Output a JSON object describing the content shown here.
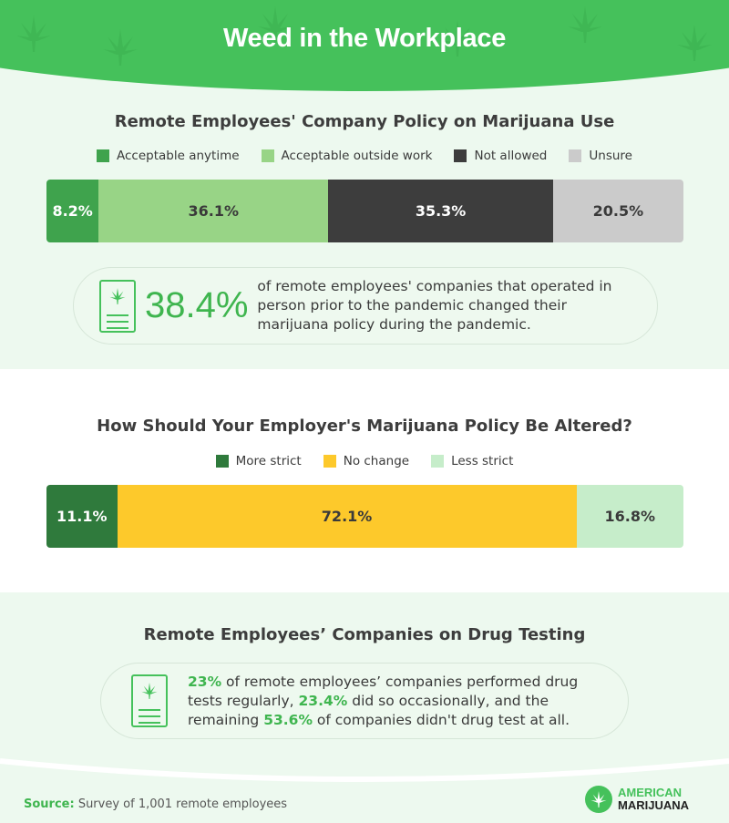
{
  "title": "Weed in the Workplace",
  "chart_data": [
    {
      "type": "bar",
      "orientation": "horizontal-stacked",
      "title": "Remote Employees' Company Policy on Marijuana Use",
      "series": [
        {
          "name": "Acceptable anytime",
          "value": 8.2,
          "label": "8.2%",
          "color": "#3fa34d",
          "text": "#ffffff"
        },
        {
          "name": "Acceptable outside work",
          "value": 36.1,
          "label": "36.1%",
          "color": "#98d486",
          "text": "#3a3a3a"
        },
        {
          "name": "Not allowed",
          "value": 35.3,
          "label": "35.3%",
          "color": "#3d3d3d",
          "text": "#ffffff"
        },
        {
          "name": "Unsure",
          "value": 20.5,
          "label": "20.5%",
          "color": "#cbcbcb",
          "text": "#3a3a3a"
        }
      ],
      "legend": "top"
    },
    {
      "type": "bar",
      "orientation": "horizontal-stacked",
      "title": "How Should Your Employer's Marijuana Policy Be Altered?",
      "series": [
        {
          "name": "More strict",
          "value": 11.1,
          "label": "11.1%",
          "color": "#2f7a3c",
          "text": "#ffffff"
        },
        {
          "name": "No change",
          "value": 72.1,
          "label": "72.1%",
          "color": "#fdc92b",
          "text": "#3a3a3a"
        },
        {
          "name": "Less strict",
          "value": 16.8,
          "label": "16.8%",
          "color": "#c6edca",
          "text": "#3a3a3a"
        }
      ],
      "legend": "top"
    }
  ],
  "callout1": {
    "stat": "38.4%",
    "text": "of remote employees' companies that operated in person prior to the pandemic changed their marijuana policy during the pandemic."
  },
  "section3": {
    "title": "Remote Employees’ Companies on Drug Testing",
    "p1": "23%",
    "t1": " of remote employees’ companies performed drug tests regularly, ",
    "p2": "23.4%",
    "t2": " did so occasionally, and the remaining ",
    "p3": "53.6%",
    "t3": " of companies didn't drug test at all."
  },
  "footer": {
    "source_label": "Source:",
    "source_text": " Survey of 1,001 remote employees",
    "logo_top": "AMERICAN",
    "logo_bottom": "MARIJUANA"
  },
  "colors": {
    "brand": "#45c15b"
  }
}
